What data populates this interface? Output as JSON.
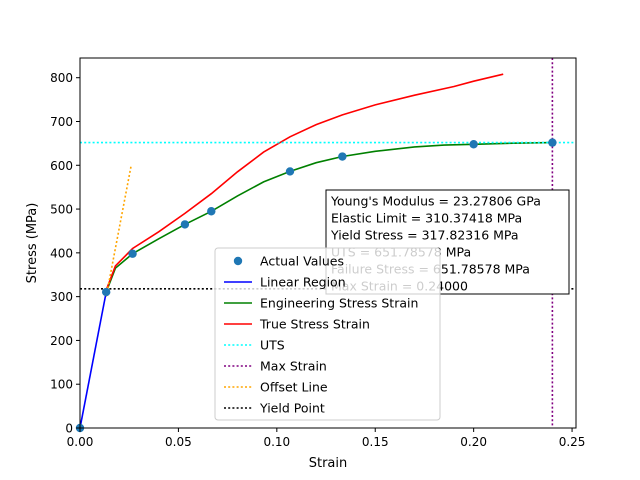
{
  "chart_data": {
    "type": "line",
    "title": "",
    "xlabel": "Strain",
    "ylabel": "Stress  (MPa)",
    "xlim": [
      0,
      0.252
    ],
    "ylim": [
      0,
      845
    ],
    "xticks": [
      0.0,
      0.05,
      0.1,
      0.15,
      0.2,
      0.25
    ],
    "xtick_labels": [
      "0.00",
      "0.05",
      "0.10",
      "0.15",
      "0.20",
      "0.25"
    ],
    "yticks": [
      0,
      100,
      200,
      300,
      400,
      500,
      600,
      700,
      800
    ],
    "ytick_labels": [
      "0",
      "100",
      "200",
      "300",
      "400",
      "500",
      "600",
      "700",
      "800"
    ],
    "grid": false,
    "legend_position": "lower-center",
    "series": [
      {
        "name": "Actual Values",
        "kind": "scatter",
        "color": "#1f77b4",
        "x": [
          0.0,
          0.0133,
          0.0267,
          0.0533,
          0.0667,
          0.1067,
          0.1333,
          0.2,
          0.24
        ],
        "y": [
          0,
          310.4,
          398,
          465,
          495,
          586,
          620,
          648,
          651.8
        ]
      },
      {
        "name": "Linear Region",
        "kind": "line",
        "color": "#0000ff",
        "dash": "solid",
        "x": [
          0.0,
          0.0133
        ],
        "y": [
          0,
          310.4
        ]
      },
      {
        "name": "Engineering Stress Strain",
        "kind": "line",
        "color": "#008000",
        "dash": "solid",
        "x": [
          0.0133,
          0.018,
          0.0267,
          0.04,
          0.0533,
          0.0667,
          0.08,
          0.0933,
          0.1067,
          0.12,
          0.1333,
          0.15,
          0.17,
          0.185,
          0.2,
          0.22,
          0.24
        ],
        "y": [
          310.4,
          365,
          398,
          432,
          465,
          495,
          530,
          562,
          586,
          606,
          620,
          632,
          642,
          646,
          648,
          650.5,
          651.8
        ]
      },
      {
        "name": "True Stress Strain",
        "kind": "line",
        "color": "#ff0000",
        "dash": "solid",
        "x": [
          0.0133,
          0.018,
          0.0267,
          0.04,
          0.0533,
          0.0667,
          0.08,
          0.0933,
          0.1067,
          0.12,
          0.1333,
          0.15,
          0.17,
          0.19,
          0.2,
          0.215
        ],
        "y": [
          315,
          370,
          410,
          448,
          490,
          535,
          585,
          630,
          665,
          693,
          715,
          738,
          760,
          780,
          792,
          808
        ]
      },
      {
        "name": "UTS",
        "kind": "hline",
        "color": "#00ffff",
        "dash": "dotted",
        "y": 651.78578
      },
      {
        "name": "Max Strain",
        "kind": "vline",
        "color": "#800080",
        "dash": "dotted",
        "x": 0.24
      },
      {
        "name": "Offset Line",
        "kind": "line",
        "color": "#ffa500",
        "dash": "dotted",
        "x": [
          0.0133,
          0.026
        ],
        "y": [
          300,
          600
        ]
      },
      {
        "name": "Yield Point",
        "kind": "hline",
        "color": "#000000",
        "dash": "dotted",
        "y": 317.82316
      }
    ],
    "annotations": [
      "Young's Modulus = 23.27806 GPa",
      "Elastic Limit = 310.37418 MPa",
      "Yield Stress = 317.82316 MPa",
      "UTS = 651.78578 MPa",
      "Failure Stress = 651.78578 MPa",
      "Max Strain = 0.24000"
    ]
  }
}
